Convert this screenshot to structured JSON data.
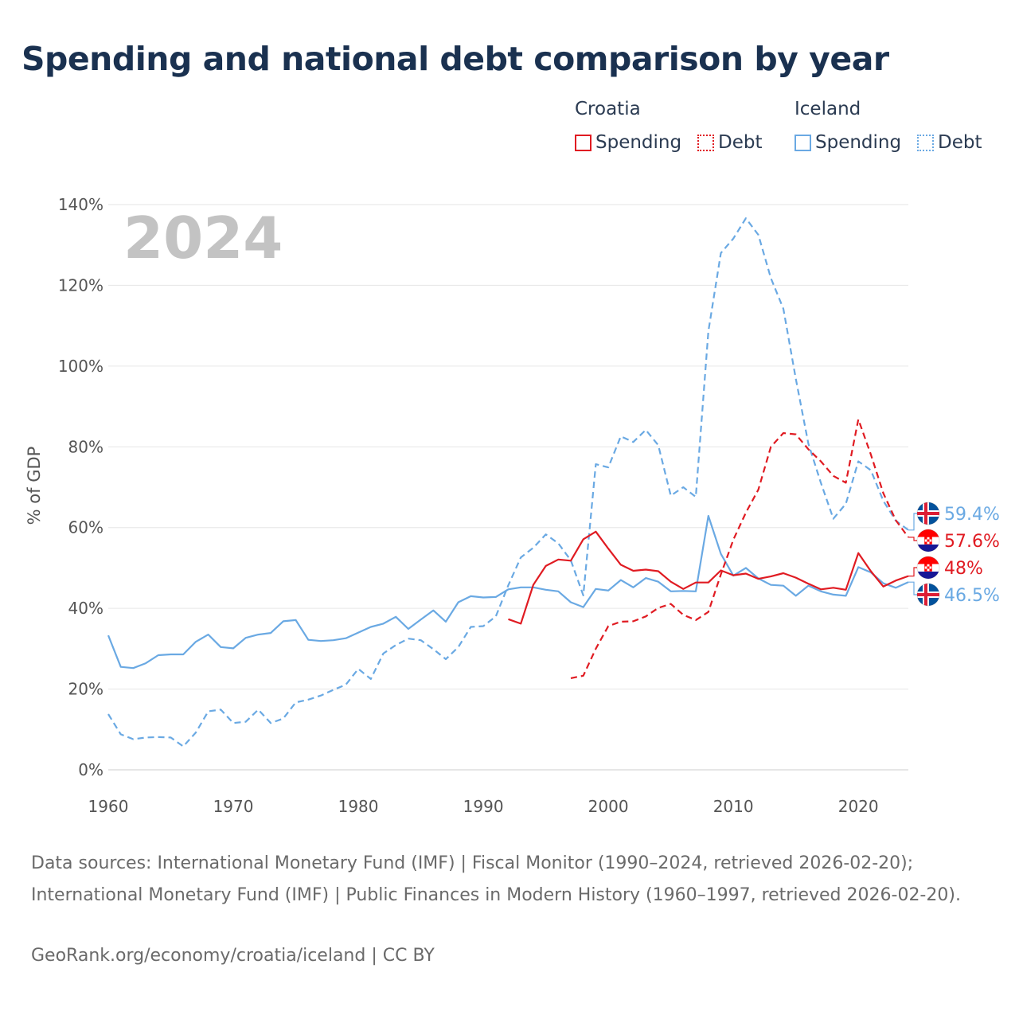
{
  "title": "Spending and national debt comparison by year",
  "legend": {
    "croatia": {
      "label": "Croatia",
      "spending": "Spending",
      "debt": "Debt",
      "color": "#e01b22"
    },
    "iceland": {
      "label": "Iceland",
      "spending": "Spending",
      "debt": "Debt",
      "color": "#6aa9e3"
    }
  },
  "footer": {
    "sources": "Data sources: International Monetary Fund (IMF) | Fiscal Monitor (1990–2024, retrieved 2026-02-20); International Monetary Fund (IMF) | Public Finances in Modern History (1960–1997, retrieved 2026-02-20).",
    "credit": "GeoRank.org/economy/croatia/iceland | CC BY"
  },
  "chart_data": {
    "type": "line",
    "year_label": "2024",
    "ylabel": "% of GDP",
    "xlabel": "",
    "xlim": [
      1960,
      2024
    ],
    "ylim": [
      0,
      140
    ],
    "x_ticks": [
      1960,
      1970,
      1980,
      1990,
      2000,
      2010,
      2020
    ],
    "y_ticks": [
      {
        "value": 0,
        "label": "0%"
      },
      {
        "value": 20,
        "label": "20%"
      },
      {
        "value": 40,
        "label": "40%"
      },
      {
        "value": 60,
        "label": "60%"
      },
      {
        "value": 80,
        "label": "80%"
      },
      {
        "value": 100,
        "label": "100%"
      },
      {
        "value": 120,
        "label": "120%"
      },
      {
        "value": 140,
        "label": "140%"
      }
    ],
    "grid": true,
    "series": [
      {
        "name": "Iceland Debt",
        "country": "Iceland",
        "metric": "Debt",
        "color": "#6aa9e3",
        "dashed": true,
        "start_year": 1960,
        "values": [
          13.8,
          8.8,
          7.6,
          8.0,
          8.1,
          8.0,
          5.8,
          9.2,
          14.5,
          14.9,
          11.6,
          11.9,
          14.9,
          11.6,
          12.7,
          16.7,
          17.4,
          18.4,
          19.8,
          21.1,
          25.0,
          22.5,
          28.8,
          30.9,
          32.5,
          32.1,
          29.9,
          27.4,
          30.4,
          35.4,
          35.6,
          38.0,
          45.7,
          52.6,
          55.0,
          58.3,
          56.1,
          51.9,
          43.2,
          75.7,
          74.9,
          82.6,
          81.2,
          84.2,
          80.4,
          67.9,
          70.0,
          67.6,
          108.6,
          128.0,
          131.6,
          136.6,
          132.5,
          121.8,
          114.2,
          96.8,
          80.8,
          71.1,
          62.2,
          65.9,
          76.4,
          74.2,
          66.6,
          61.7,
          59.4
        ]
      },
      {
        "name": "Iceland Spending",
        "country": "Iceland",
        "metric": "Spending",
        "color": "#6aa9e3",
        "dashed": false,
        "start_year": 1960,
        "values": [
          33.3,
          25.5,
          25.2,
          26.4,
          28.4,
          28.6,
          28.6,
          31.7,
          33.5,
          30.4,
          30.1,
          32.7,
          33.5,
          33.9,
          36.8,
          37.1,
          32.2,
          31.9,
          32.1,
          32.6,
          34.0,
          35.4,
          36.2,
          37.9,
          34.9,
          37.2,
          39.5,
          36.7,
          41.5,
          43.0,
          42.7,
          42.8,
          44.7,
          45.2,
          45.2,
          44.6,
          44.2,
          41.5,
          40.3,
          44.8,
          44.4,
          47.0,
          45.2,
          47.5,
          46.6,
          44.2,
          44.3,
          44.2,
          62.9,
          53.5,
          48.1,
          50.0,
          47.4,
          45.8,
          45.6,
          43.1,
          45.6,
          44.2,
          43.4,
          43.1,
          50.2,
          48.9,
          46.2,
          45.1,
          46.5
        ]
      },
      {
        "name": "Croatia Spending",
        "country": "Croatia",
        "metric": "Spending",
        "color": "#e01b22",
        "dashed": false,
        "start_year": 1992,
        "values": [
          37.3,
          36.2,
          45.8,
          50.5,
          52.1,
          51.8,
          57.1,
          59.0,
          54.8,
          50.8,
          49.3,
          49.6,
          49.2,
          46.6,
          44.8,
          46.4,
          46.4,
          49.4,
          48.2,
          48.6,
          47.3,
          47.9,
          48.7,
          47.6,
          46.1,
          44.7,
          45.1,
          44.6,
          53.7,
          49.2,
          45.4,
          46.9,
          48.0
        ]
      },
      {
        "name": "Croatia Debt",
        "country": "Croatia",
        "metric": "Debt",
        "color": "#e01b22",
        "dashed": true,
        "start_year": 1997,
        "values": [
          22.7,
          23.3,
          30.0,
          35.6,
          36.7,
          36.8,
          38.0,
          40.1,
          41.1,
          38.4,
          37.1,
          39.1,
          48.4,
          57.0,
          63.7,
          69.4,
          80.0,
          83.4,
          83.1,
          79.4,
          76.4,
          72.8,
          71.1,
          86.8,
          78.1,
          68.5,
          61.8,
          57.6
        ]
      }
    ],
    "end_labels": [
      {
        "series": "Iceland Debt",
        "text": "59.4%"
      },
      {
        "series": "Croatia Debt",
        "text": "57.6%"
      },
      {
        "series": "Croatia Spending",
        "text": "48%"
      },
      {
        "series": "Iceland Spending",
        "text": "46.5%"
      }
    ]
  }
}
